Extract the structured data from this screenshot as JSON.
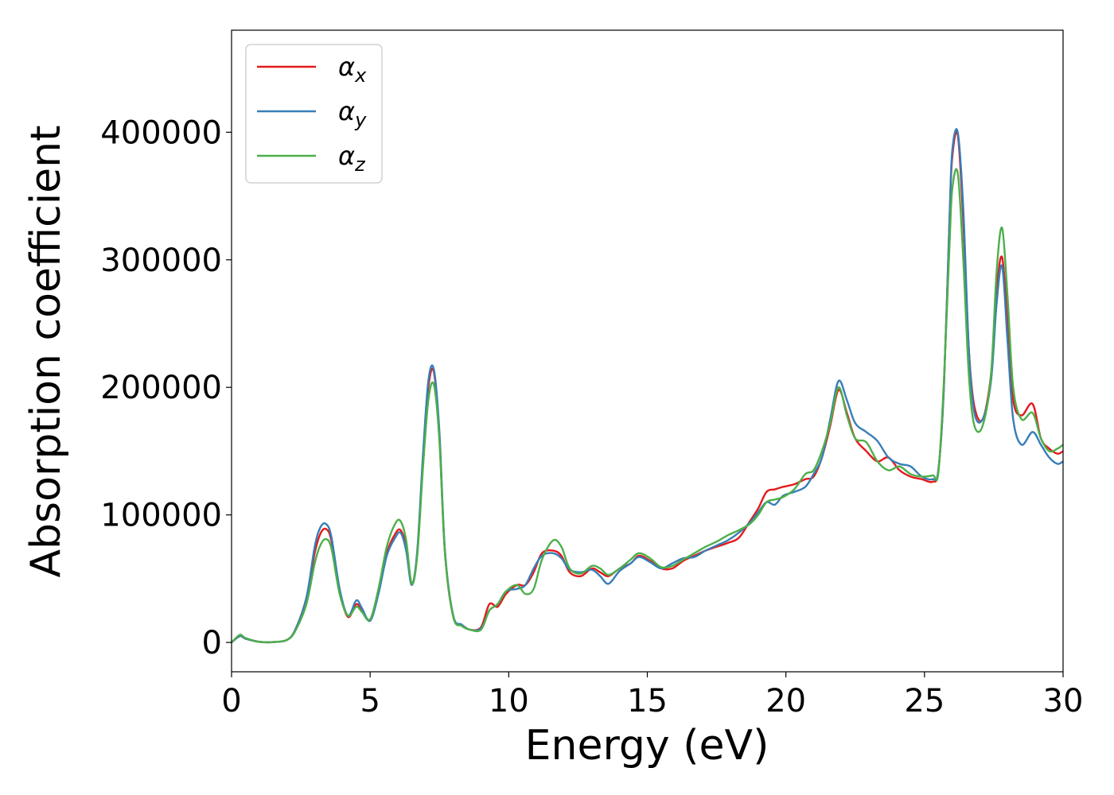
{
  "chart_data": {
    "type": "line",
    "title": "",
    "xlabel": "Energy (eV)",
    "ylabel": "Absorption coefficient",
    "xlim": [
      0,
      30
    ],
    "ylim": [
      -23000,
      480000
    ],
    "xticks": [
      0,
      5,
      10,
      15,
      20,
      25,
      30
    ],
    "yticks": [
      0,
      100000,
      200000,
      300000,
      400000
    ],
    "xtick_labels": [
      "0",
      "5",
      "10",
      "15",
      "20",
      "25",
      "30"
    ],
    "ytick_labels": [
      "0",
      "100000",
      "200000",
      "300000",
      "400000"
    ],
    "grid": false,
    "legend_position": "top-left",
    "series": [
      {
        "name": "α_x",
        "legend_base": "α",
        "legend_sub": "x",
        "color": "#e41a1c",
        "x": [
          0,
          0.3,
          0.5,
          1.0,
          1.5,
          2.0,
          2.3,
          2.7,
          3.0,
          3.2,
          3.4,
          3.6,
          3.9,
          4.2,
          4.5,
          4.7,
          5.0,
          5.3,
          5.6,
          5.9,
          6.1,
          6.3,
          6.5,
          6.7,
          6.9,
          7.1,
          7.3,
          7.5,
          7.7,
          8.0,
          8.3,
          8.6,
          9.0,
          9.3,
          9.6,
          9.9,
          10.3,
          10.6,
          10.9,
          11.2,
          11.6,
          11.9,
          12.2,
          12.6,
          13.0,
          13.3,
          13.6,
          14.0,
          14.4,
          14.7,
          15.1,
          15.5,
          15.9,
          16.3,
          16.7,
          17.1,
          17.5,
          17.9,
          18.3,
          18.7,
          19.0,
          19.3,
          19.6,
          19.9,
          20.3,
          20.7,
          21.0,
          21.3,
          21.6,
          21.9,
          22.2,
          22.5,
          22.9,
          23.3,
          23.7,
          24.1,
          24.5,
          24.9,
          25.3,
          25.5,
          25.7,
          25.9,
          26.0,
          26.2,
          26.4,
          26.6,
          26.8,
          27.1,
          27.4,
          27.6,
          27.8,
          28.0,
          28.2,
          28.5,
          28.9,
          29.2,
          29.5,
          29.8,
          30
        ],
        "y": [
          0,
          5000,
          3000,
          500,
          300,
          2000,
          10000,
          35000,
          70000,
          85000,
          89000,
          80000,
          40000,
          20000,
          30000,
          25000,
          18000,
          40000,
          70000,
          85000,
          88000,
          75000,
          46000,
          70000,
          140000,
          200000,
          212000,
          160000,
          70000,
          20000,
          14000,
          10000,
          12000,
          30000,
          28000,
          38000,
          45000,
          45000,
          55000,
          70000,
          72000,
          68000,
          55000,
          52000,
          58000,
          55000,
          52000,
          58000,
          62000,
          68000,
          64000,
          58000,
          58000,
          64000,
          68000,
          72000,
          75000,
          78000,
          82000,
          95000,
          105000,
          118000,
          120000,
          122000,
          124000,
          128000,
          130000,
          145000,
          170000,
          198000,
          180000,
          160000,
          150000,
          142000,
          145000,
          135000,
          130000,
          128000,
          126000,
          135000,
          200000,
          330000,
          380000,
          398000,
          330000,
          230000,
          185000,
          175000,
          210000,
          275000,
          302000,
          250000,
          190000,
          178000,
          187000,
          160000,
          152000,
          148000,
          150000
        ]
      },
      {
        "name": "α_y",
        "legend_base": "α",
        "legend_sub": "y",
        "color": "#377eb8",
        "x": [
          0,
          0.3,
          0.5,
          1.0,
          1.5,
          2.0,
          2.3,
          2.7,
          3.0,
          3.2,
          3.4,
          3.6,
          3.9,
          4.2,
          4.5,
          4.7,
          5.0,
          5.3,
          5.6,
          5.9,
          6.1,
          6.3,
          6.5,
          6.7,
          6.9,
          7.1,
          7.3,
          7.5,
          7.7,
          8.0,
          8.3,
          8.6,
          9.0,
          9.3,
          9.6,
          9.9,
          10.3,
          10.6,
          10.9,
          11.2,
          11.6,
          11.9,
          12.2,
          12.6,
          13.0,
          13.3,
          13.6,
          14.0,
          14.4,
          14.7,
          15.1,
          15.5,
          15.9,
          16.3,
          16.7,
          17.1,
          17.5,
          17.9,
          18.3,
          18.7,
          19.0,
          19.3,
          19.6,
          19.9,
          20.3,
          20.7,
          21.0,
          21.3,
          21.6,
          21.9,
          22.2,
          22.5,
          22.9,
          23.3,
          23.7,
          24.1,
          24.5,
          24.9,
          25.3,
          25.5,
          25.7,
          25.9,
          26.0,
          26.2,
          26.4,
          26.6,
          26.8,
          27.1,
          27.4,
          27.6,
          27.8,
          28.0,
          28.2,
          28.5,
          28.9,
          29.2,
          29.5,
          29.8,
          30
        ],
        "y": [
          0,
          5000,
          3000,
          500,
          300,
          2000,
          10000,
          35000,
          75000,
          90000,
          93000,
          83000,
          42000,
          21000,
          33000,
          27000,
          17000,
          38000,
          68000,
          82000,
          86000,
          72000,
          45000,
          72000,
          145000,
          205000,
          214000,
          165000,
          72000,
          21000,
          14000,
          10000,
          11000,
          25000,
          30000,
          40000,
          42000,
          45000,
          58000,
          68000,
          70000,
          66000,
          57000,
          55000,
          57000,
          52000,
          46000,
          56000,
          62000,
          67000,
          63000,
          58000,
          62000,
          66000,
          67000,
          72000,
          76000,
          80000,
          86000,
          94000,
          102000,
          110000,
          108000,
          115000,
          118000,
          122000,
          132000,
          145000,
          175000,
          205000,
          190000,
          172000,
          165000,
          158000,
          145000,
          140000,
          138000,
          130000,
          128000,
          135000,
          200000,
          330000,
          385000,
          400000,
          340000,
          230000,
          180000,
          175000,
          205000,
          265000,
          295000,
          235000,
          175000,
          155000,
          165000,
          155000,
          145000,
          140000,
          142000
        ]
      },
      {
        "name": "α_z",
        "legend_base": "α",
        "legend_sub": "z",
        "color": "#4daf4a",
        "x": [
          0,
          0.3,
          0.5,
          1.0,
          1.5,
          2.0,
          2.3,
          2.7,
          3.0,
          3.2,
          3.4,
          3.6,
          3.9,
          4.2,
          4.5,
          4.7,
          5.0,
          5.3,
          5.6,
          5.9,
          6.1,
          6.3,
          6.5,
          6.7,
          6.9,
          7.1,
          7.3,
          7.5,
          7.7,
          8.0,
          8.3,
          8.6,
          9.0,
          9.3,
          9.6,
          9.9,
          10.3,
          10.6,
          10.9,
          11.2,
          11.6,
          11.9,
          12.2,
          12.6,
          13.0,
          13.3,
          13.6,
          14.0,
          14.4,
          14.7,
          15.1,
          15.5,
          15.9,
          16.3,
          16.7,
          17.1,
          17.5,
          17.9,
          18.3,
          18.7,
          19.0,
          19.3,
          19.6,
          19.9,
          20.3,
          20.7,
          21.0,
          21.3,
          21.6,
          21.9,
          22.2,
          22.5,
          22.9,
          23.3,
          23.7,
          24.1,
          24.5,
          24.9,
          25.3,
          25.5,
          25.7,
          25.9,
          26.0,
          26.2,
          26.4,
          26.6,
          26.8,
          27.1,
          27.4,
          27.6,
          27.8,
          28.0,
          28.2,
          28.5,
          28.9,
          29.2,
          29.5,
          29.8,
          30
        ],
        "y": [
          0,
          6000,
          3500,
          500,
          300,
          2000,
          9000,
          30000,
          62000,
          76000,
          81000,
          74000,
          38000,
          21000,
          28000,
          24000,
          18000,
          42000,
          75000,
          93000,
          95000,
          80000,
          46000,
          68000,
          135000,
          190000,
          202000,
          158000,
          70000,
          20000,
          13000,
          10000,
          10000,
          25000,
          30000,
          40000,
          45000,
          38000,
          42000,
          65000,
          80000,
          75000,
          58000,
          54000,
          60000,
          58000,
          53000,
          58000,
          65000,
          70000,
          66000,
          59000,
          60000,
          65000,
          70000,
          75000,
          79000,
          84000,
          88000,
          93000,
          100000,
          110000,
          112000,
          114000,
          120000,
          132000,
          135000,
          150000,
          172000,
          200000,
          178000,
          160000,
          157000,
          142000,
          135000,
          138000,
          132000,
          130000,
          131000,
          133000,
          205000,
          310000,
          355000,
          368000,
          300000,
          210000,
          170000,
          170000,
          210000,
          290000,
          325000,
          270000,
          200000,
          175000,
          180000,
          160000,
          150000,
          152000,
          155000
        ]
      }
    ]
  }
}
